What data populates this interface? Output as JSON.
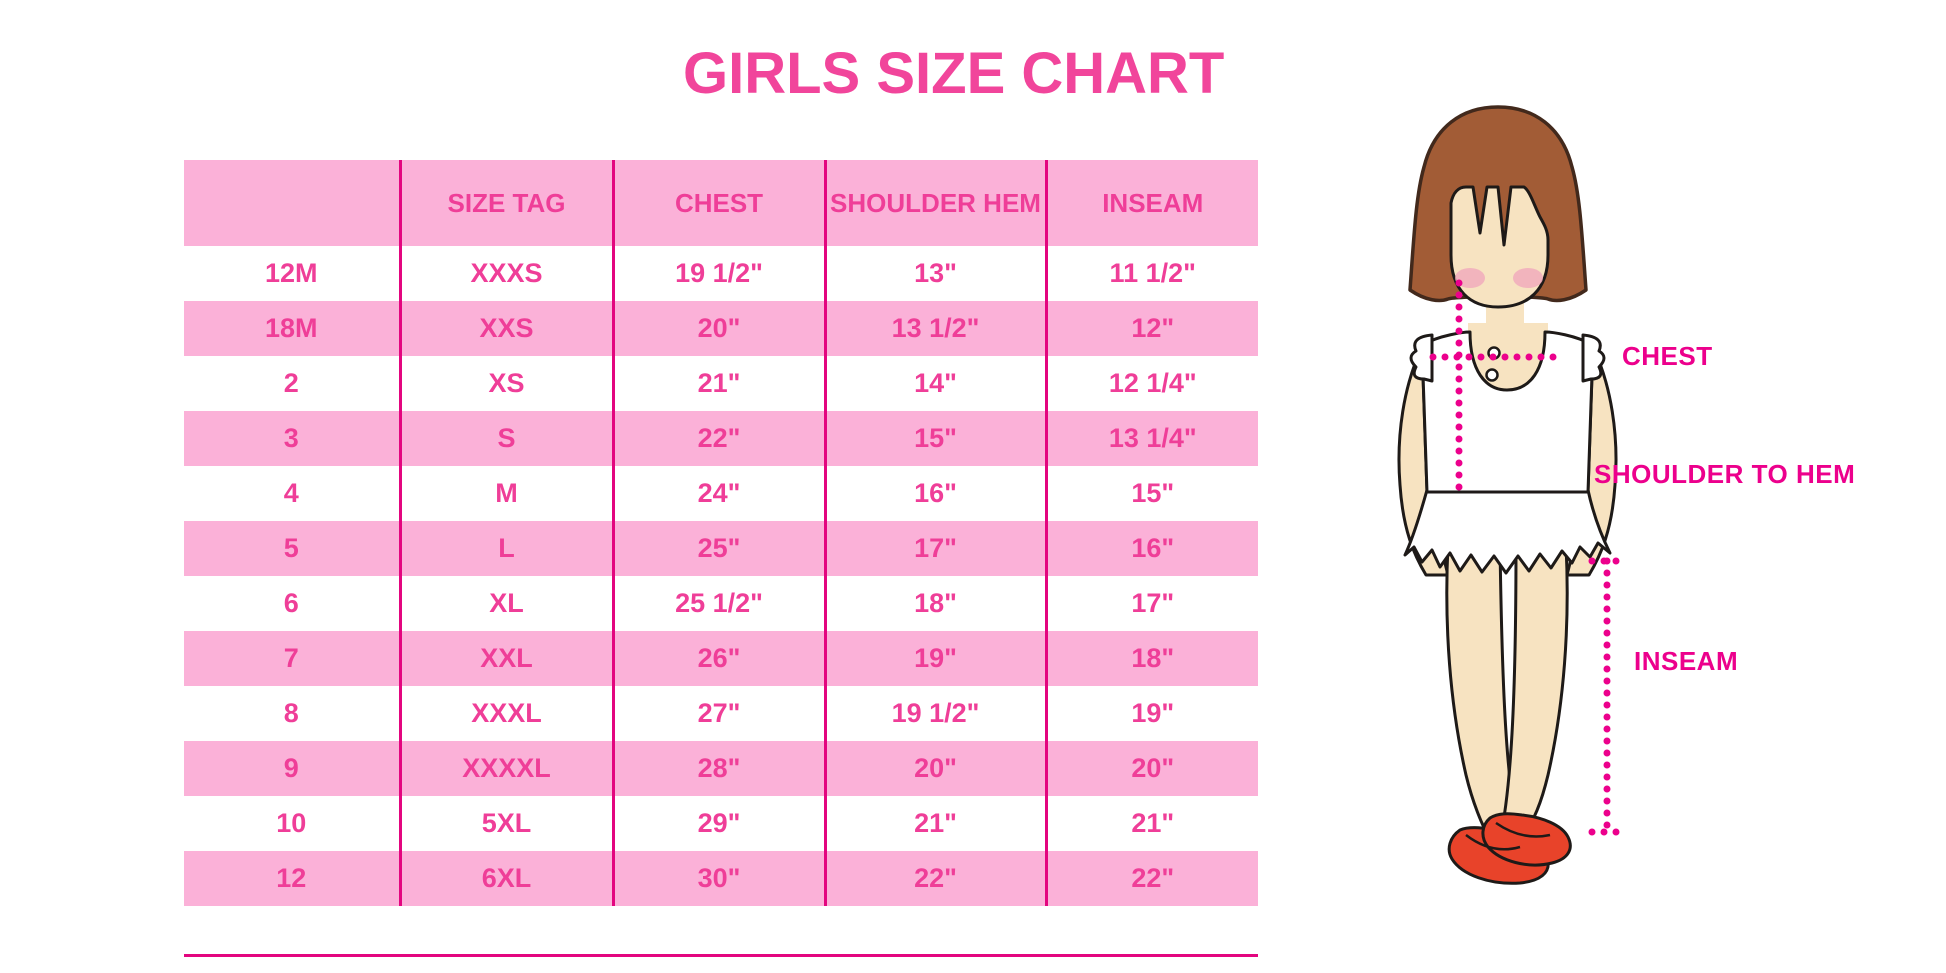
{
  "title": "GIRLS SIZE CHART",
  "chart_data": {
    "type": "table",
    "title": "GIRLS SIZE CHART",
    "columns": [
      "",
      "SIZE TAG",
      "CHEST",
      "SHOULDER HEM",
      "INSEAM"
    ],
    "rows": [
      [
        "12M",
        "XXXS",
        "19 1/2\"",
        "13\"",
        "11 1/2\""
      ],
      [
        "18M",
        "XXS",
        "20\"",
        "13 1/2\"",
        "12\""
      ],
      [
        "2",
        "XS",
        "21\"",
        "14\"",
        "12 1/4\""
      ],
      [
        "3",
        "S",
        "22\"",
        "15\"",
        "13 1/4\""
      ],
      [
        "4",
        "M",
        "24\"",
        "16\"",
        "15\""
      ],
      [
        "5",
        "L",
        "25\"",
        "17\"",
        "16\""
      ],
      [
        "6",
        "XL",
        "25 1/2\"",
        "18\"",
        "17\""
      ],
      [
        "7",
        "XXL",
        "26\"",
        "19\"",
        "18\""
      ],
      [
        "8",
        "XXXL",
        "27\"",
        "19 1/2\"",
        "19\""
      ],
      [
        "9",
        "XXXXL",
        "28\"",
        "20\"",
        "20\""
      ],
      [
        "10",
        "5XL",
        "29\"",
        "21\"",
        "21\""
      ],
      [
        "12",
        "6XL",
        "30\"",
        "22\"",
        "22\""
      ]
    ],
    "layout_hints": {
      "row_striping": "odd rows white, even rows pink",
      "grid": "vertical magenta separators only, no outer border"
    }
  },
  "figure": {
    "illustration": "cartoon girl with brown bob hair, white ruffled sleeveless top and skirt, red shoes, magenta dotted measurement guides",
    "measurement_labels": {
      "chest": "CHEST",
      "shoulder_to_hem": "SHOULDER TO HEM",
      "inseam": "INSEAM"
    }
  },
  "colors": {
    "title_pink": "#F1459B",
    "row_pink": "#FBB1D8",
    "line_magenta": "#E3057F",
    "table_text": "#EF3E98",
    "label_magenta": "#EC008C",
    "hair_brown": "#A25C36",
    "hair_outline": "#42291C",
    "skin": "#F7E3C1",
    "blush": "#F0A8BC",
    "shoe_red": "#E8432A",
    "outline_black": "#1E1A18"
  }
}
